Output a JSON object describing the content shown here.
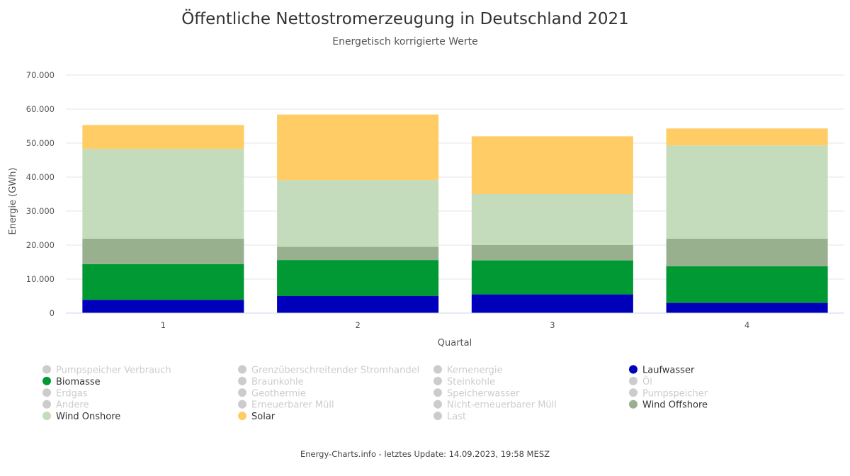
{
  "chart_data": {
    "type": "bar",
    "stacked": true,
    "title": "Öffentliche Nettostromerzeugung in Deutschland 2021",
    "subtitle": "Energetisch korrigierte Werte",
    "xlabel": "Quartal",
    "ylabel": "Energie (GWh)",
    "categories": [
      "1",
      "2",
      "3",
      "4"
    ],
    "ylim": [
      0,
      70000
    ],
    "yticks": [
      0,
      10000,
      20000,
      30000,
      40000,
      50000,
      60000,
      70000
    ],
    "ytick_labels": [
      "0",
      "10.000",
      "20.000",
      "30.000",
      "40.000",
      "50.000",
      "60.000",
      "70.000"
    ],
    "series": [
      {
        "name": "Laufwasser",
        "color": "#0000bb",
        "values": [
          3900,
          5000,
          5500,
          3000
        ]
      },
      {
        "name": "Biomasse",
        "color": "#009933",
        "values": [
          10500,
          10600,
          10000,
          10800
        ]
      },
      {
        "name": "Wind Offshore",
        "color": "#99b08f",
        "values": [
          7500,
          3900,
          4500,
          8100
        ]
      },
      {
        "name": "Wind Onshore",
        "color": "#c5dcbc",
        "values": [
          26400,
          19600,
          15000,
          27400
        ]
      },
      {
        "name": "Solar",
        "color": "#ffcc66",
        "values": [
          7000,
          19300,
          17000,
          5000
        ]
      }
    ],
    "legend": [
      {
        "name": "Pumpspeicher Verbrauch",
        "active": false
      },
      {
        "name": "Grenzüberschreitender Stromhandel",
        "active": false
      },
      {
        "name": "Kernenergie",
        "active": false
      },
      {
        "name": "Laufwasser",
        "active": true,
        "color": "#0000bb"
      },
      {
        "name": "Biomasse",
        "active": true,
        "color": "#009933"
      },
      {
        "name": "Braunkohle",
        "active": false
      },
      {
        "name": "Steinkohle",
        "active": false
      },
      {
        "name": "Öl",
        "active": false
      },
      {
        "name": "Erdgas",
        "active": false
      },
      {
        "name": "Geothermie",
        "active": false
      },
      {
        "name": "Speicherwasser",
        "active": false
      },
      {
        "name": "Pumpspeicher",
        "active": false
      },
      {
        "name": "Andere",
        "active": false
      },
      {
        "name": "Erneuerbarer Müll",
        "active": false
      },
      {
        "name": "Nicht-erneuerbarer Müll",
        "active": false
      },
      {
        "name": "Wind Offshore",
        "active": true,
        "color": "#99b08f"
      },
      {
        "name": "Wind Onshore",
        "active": true,
        "color": "#c5dcbc"
      },
      {
        "name": "Solar",
        "active": true,
        "color": "#ffcc66"
      },
      {
        "name": "Last",
        "active": false
      }
    ],
    "footer": "Energy-Charts.info - letztes Update: 14.09.2023, 19:58 MESZ"
  },
  "colors": {
    "inactive_legend": "#cccccc",
    "active_legend_text": "#333333",
    "gridline": "#e6e6e6"
  }
}
